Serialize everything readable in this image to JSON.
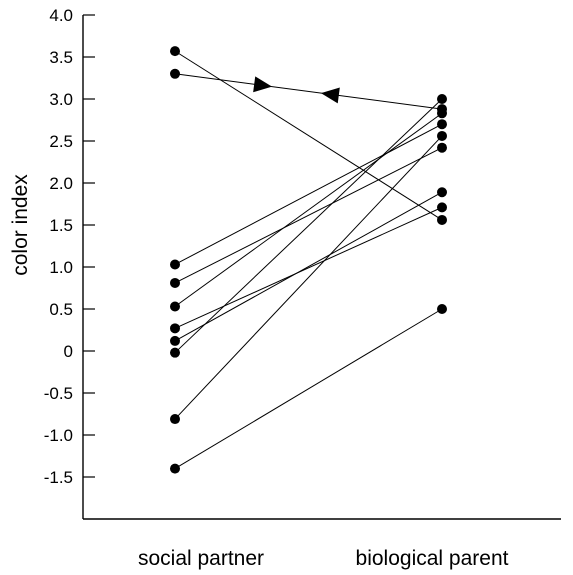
{
  "chart_data": {
    "type": "line",
    "ylabel": "color index",
    "xlabel": "",
    "categories": [
      "social partner",
      "biological parent"
    ],
    "ylim": [
      -2.0,
      4.0
    ],
    "yticks": [
      4.0,
      3.5,
      3.0,
      2.5,
      2.0,
      1.5,
      1.0,
      0.5,
      0,
      -0.5,
      -1.0,
      -1.5
    ],
    "ytick_labels": [
      "4.0",
      "3.5",
      "3.0",
      "2.5",
      "2.0",
      "1.5",
      "1.0",
      "0.5",
      "0",
      "-0.5",
      "-1.0",
      "-1.5"
    ],
    "grid": false,
    "legend": "none",
    "pairs": [
      {
        "social": 3.57,
        "biological": 1.56
      },
      {
        "social": 3.3,
        "biological": 2.88,
        "arrows": "both-toward-center"
      },
      {
        "social": 1.03,
        "biological": 2.7
      },
      {
        "social": 0.81,
        "biological": 2.42
      },
      {
        "social": 0.53,
        "biological": 2.83
      },
      {
        "social": 0.27,
        "biological": 1.71
      },
      {
        "social": 0.12,
        "biological": 1.89
      },
      {
        "social": -0.02,
        "biological": 3.0
      },
      {
        "social": -0.81,
        "biological": 2.56
      },
      {
        "social": -1.4,
        "biological": 0.5
      }
    ]
  }
}
